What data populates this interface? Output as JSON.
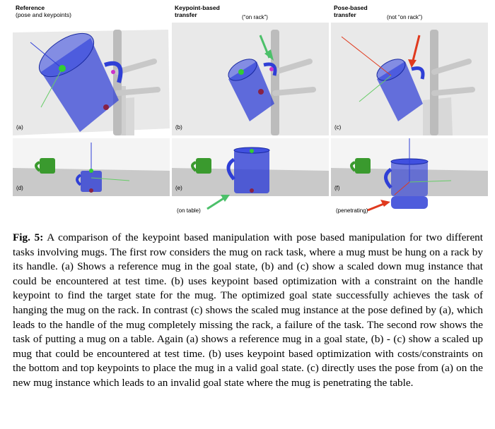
{
  "figure": {
    "columns": [
      {
        "title": "Reference",
        "subtitle": "(pose and keypoints)",
        "annotation": ""
      },
      {
        "title": "Keypoint-based",
        "subtitle": "transfer",
        "annotation": "(“on rack”)"
      },
      {
        "title": "Pose-based",
        "subtitle": "transfer",
        "annotation": "(not “on rack”)"
      }
    ],
    "panel_labels": [
      "(a)",
      "(b)",
      "(c)",
      "(d)",
      "(e)",
      "(f)"
    ],
    "row2_annotations": {
      "e": "(on table)",
      "f": "(penetrating)"
    },
    "colors": {
      "mug": "#2f3fd6",
      "keypoint_green": "#33cc33",
      "keypoint_magenta": "#cc33cc",
      "arrow_green": "#4cc06a",
      "arrow_red": "#e03a1e",
      "green_mug": "#3a9a2e"
    }
  },
  "caption": {
    "label": "Fig. 5:",
    "text": "A comparison of the keypoint based manipulation with pose based manipulation for two different tasks involving mugs. The first row considers the mug on rack task, where a mug must be hung on a rack by its handle. (a) Shows a reference mug in the goal state, (b) and (c) show a scaled down mug instance that could be encountered at test time. (b) uses keypoint based optimization with a constraint on the handle keypoint to find the target state for the mug. The optimized goal state successfully achieves the task of hanging the mug on the rack. In contrast (c) shows the scaled mug instance at the pose defined by (a), which leads to the handle of the mug completely missing the rack, a failure of the task. The second row shows the task of putting a mug on a table. Again (a) shows a reference mug in a goal state, (b) - (c) show a scaled up mug that could be encountered at test time. (b) uses keypoint based optimization with costs/constraints on the bottom and top keypoints to place the mug in a valid goal state. (c) directly uses the pose from (a) on the new mug instance which leads to an invalid goal state where the mug is penetrating the table."
  }
}
